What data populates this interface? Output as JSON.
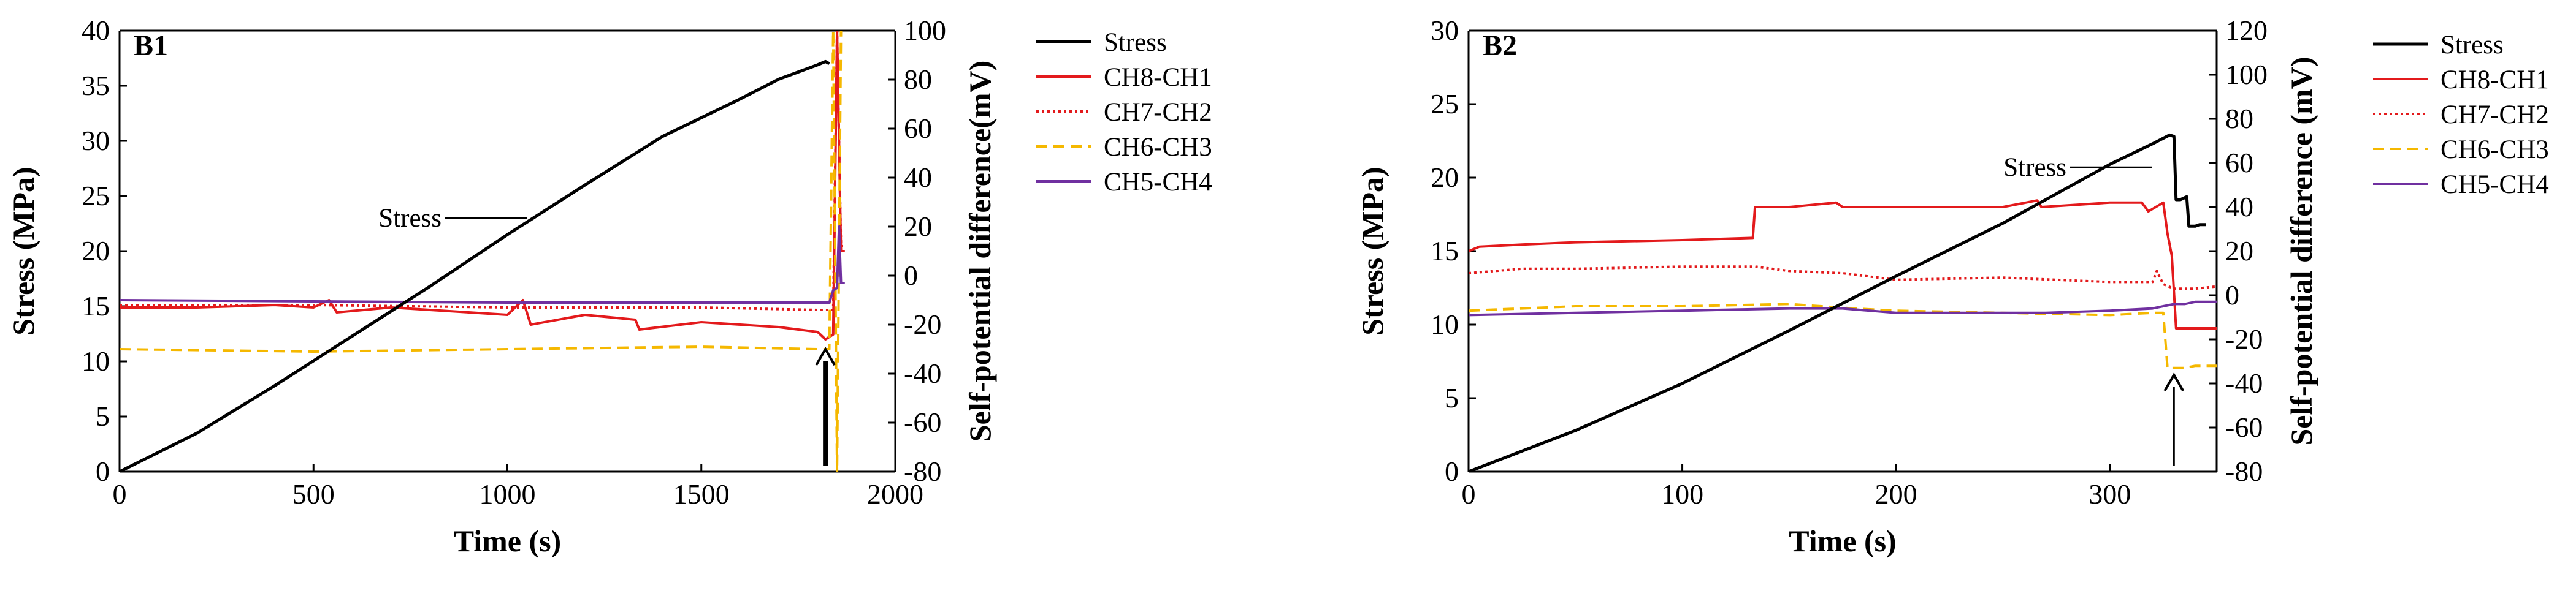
{
  "chart_data": [
    {
      "type": "line",
      "panel": "B1",
      "xlabel": "Time (s)",
      "ylabel": "Stress (MPa)",
      "y2label": "Self-potential difference(mV)",
      "xlim": [
        0,
        2000
      ],
      "ylim": [
        0,
        40
      ],
      "y2lim": [
        -80,
        100
      ],
      "xticks": [
        0,
        500,
        1000,
        1500,
        2000
      ],
      "yticks": [
        0,
        5,
        10,
        15,
        20,
        25,
        30,
        35,
        40
      ],
      "y2ticks": [
        -80,
        -60,
        -40,
        -20,
        0,
        20,
        40,
        60,
        80,
        100
      ],
      "legend_position": "right",
      "annotation": "Stress",
      "arrow_x": 1820,
      "series": [
        {
          "name": "Stress",
          "axis": "left",
          "color": "#000000",
          "dash": "solid",
          "x": [
            0,
            200,
            400,
            600,
            800,
            1000,
            1200,
            1400,
            1600,
            1700,
            1800,
            1820,
            1830
          ],
          "y": [
            0,
            3.5,
            7.8,
            12.3,
            16.8,
            21.5,
            26.0,
            30.4,
            33.8,
            35.6,
            36.9,
            37.2,
            37.0
          ]
        },
        {
          "name": "CH8-CH1",
          "axis": "right",
          "color": "#e31a1c",
          "dash": "solid",
          "x": [
            0,
            200,
            400,
            500,
            540,
            560,
            700,
            900,
            1000,
            1040,
            1060,
            1200,
            1330,
            1340,
            1500,
            1700,
            1800,
            1820,
            1840,
            1850,
            1860,
            1870
          ],
          "y": [
            -13,
            -13,
            -12,
            -13,
            -10,
            -15,
            -13,
            -15,
            -16,
            -10,
            -20,
            -16,
            -18,
            -22,
            -19,
            -21,
            -23,
            -26,
            -24,
            100,
            10,
            10
          ]
        },
        {
          "name": "CH7-CH2",
          "axis": "right",
          "color": "#e31a1c",
          "dash": "dotted",
          "x": [
            0,
            500,
            1000,
            1500,
            1800,
            1840,
            1850,
            1860,
            1870
          ],
          "y": [
            -12,
            -12,
            -13,
            -13,
            -14,
            -14,
            100,
            12,
            12
          ]
        },
        {
          "name": "CH6-CH3",
          "axis": "right",
          "color": "#f5b800",
          "dash": "dashed",
          "x": [
            0,
            500,
            1000,
            1500,
            1800,
            1830,
            1840,
            1850,
            1860
          ],
          "y": [
            -30,
            -31,
            -30,
            -29,
            -30,
            -30,
            100,
            -80,
            100
          ]
        },
        {
          "name": "CH5-CH4",
          "axis": "right",
          "color": "#7030a0",
          "dash": "solid",
          "x": [
            0,
            500,
            1000,
            1500,
            1800,
            1830,
            1840,
            1850,
            1855,
            1860,
            1870
          ],
          "y": [
            -10,
            -10.5,
            -11,
            -11,
            -11,
            -11,
            -6,
            -5,
            20,
            -3,
            -3
          ]
        }
      ]
    },
    {
      "type": "line",
      "panel": "B2",
      "xlabel": "Time (s)",
      "ylabel": "Stress (MPa)",
      "y2label": "Self-potential difference (mV)",
      "xlim": [
        0,
        350
      ],
      "ylim": [
        0,
        30
      ],
      "y2lim": [
        -80,
        120
      ],
      "xticks": [
        0,
        100,
        200,
        300
      ],
      "yticks": [
        0,
        5,
        10,
        15,
        20,
        25,
        30
      ],
      "y2ticks": [
        -80,
        -60,
        -40,
        -20,
        0,
        20,
        40,
        60,
        80,
        100,
        120
      ],
      "legend_position": "right",
      "annotation": "Stress",
      "arrow_x": 330,
      "series": [
        {
          "name": "Stress",
          "axis": "left",
          "color": "#000000",
          "dash": "solid",
          "x": [
            0,
            50,
            100,
            150,
            200,
            250,
            300,
            320,
            328,
            330,
            331,
            333,
            336,
            337,
            340,
            342,
            345
          ],
          "y": [
            0,
            2.8,
            6.0,
            9.6,
            13.3,
            16.9,
            20.9,
            22.3,
            22.9,
            22.8,
            18.5,
            18.5,
            18.7,
            16.7,
            16.7,
            16.8,
            16.8
          ]
        },
        {
          "name": "CH8-CH1",
          "axis": "right",
          "color": "#e31a1c",
          "dash": "solid",
          "x": [
            0,
            5,
            25,
            50,
            100,
            133,
            134,
            150,
            172,
            175,
            200,
            250,
            266,
            268,
            300,
            315,
            318,
            325,
            327,
            329,
            331,
            340,
            350
          ],
          "y": [
            20,
            22,
            23,
            24,
            25,
            26,
            40,
            40,
            42,
            40,
            40,
            40,
            43,
            40,
            42,
            42,
            38,
            42,
            28,
            18,
            -15,
            -15,
            -15
          ]
        },
        {
          "name": "CH7-CH2",
          "axis": "right",
          "color": "#e31a1c",
          "dash": "dotted",
          "x": [
            0,
            25,
            50,
            100,
            134,
            150,
            175,
            200,
            250,
            300,
            320,
            322,
            325,
            330,
            340,
            350
          ],
          "y": [
            10,
            12,
            12,
            13,
            13,
            11,
            10,
            7,
            8,
            6,
            6,
            11,
            5,
            3,
            3,
            4
          ]
        },
        {
          "name": "CH6-CH3",
          "axis": "right",
          "color": "#f5b800",
          "dash": "dashed",
          "x": [
            0,
            50,
            100,
            150,
            180,
            200,
            250,
            300,
            320,
            325,
            327,
            335,
            340,
            350
          ],
          "y": [
            -7,
            -5,
            -5,
            -4,
            -6,
            -7,
            -8,
            -9,
            -8,
            -8,
            -33,
            -33,
            -32,
            -32
          ]
        },
        {
          "name": "CH5-CH4",
          "axis": "right",
          "color": "#7030a0",
          "dash": "solid",
          "x": [
            0,
            50,
            100,
            150,
            175,
            200,
            250,
            270,
            300,
            320,
            325,
            330,
            335,
            340,
            350
          ],
          "y": [
            -9,
            -8,
            -7,
            -6,
            -6,
            -8,
            -8,
            -8,
            -7,
            -6,
            -5,
            -4,
            -4,
            -3,
            -3
          ]
        }
      ]
    }
  ]
}
